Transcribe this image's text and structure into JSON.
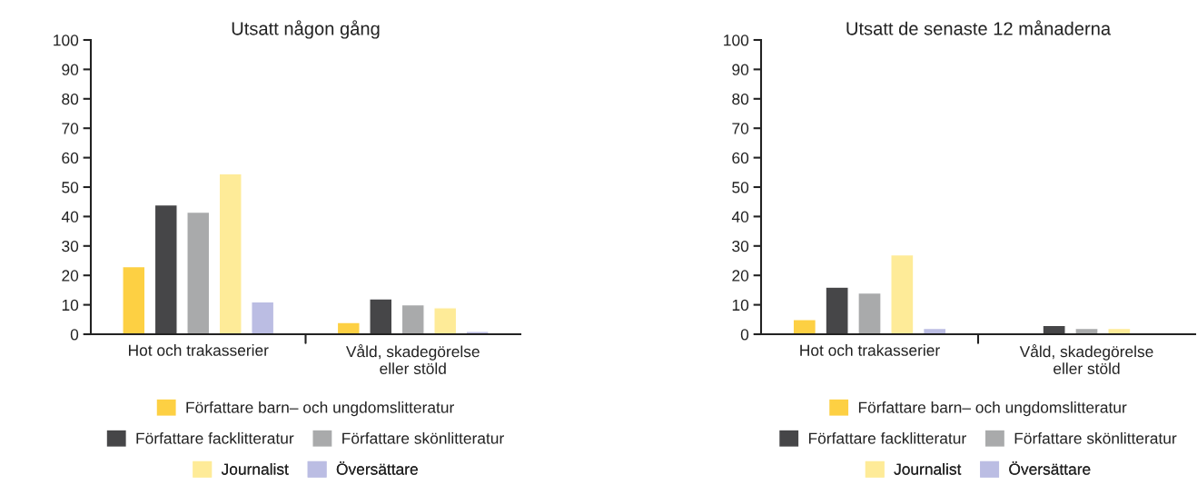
{
  "chart_data": [
    {
      "type": "bar",
      "title": "Utsatt någon gång",
      "categories": [
        "Hot och trakasserier",
        "Våld, skadegörelse\neller stöld"
      ],
      "series": [
        {
          "name": "Författare barn– och ungdomslitteratur",
          "color": "#fdd043",
          "values": [
            23,
            4
          ]
        },
        {
          "name": "Författare facklitteratur",
          "color": "#464648",
          "values": [
            44,
            12
          ]
        },
        {
          "name": "Författare skönlitteratur",
          "color": "#a9aaab",
          "values": [
            41.5,
            10
          ]
        },
        {
          "name": "Journalist",
          "color": "#feeb98",
          "values": [
            54.5,
            9
          ]
        },
        {
          "name": "Översättare",
          "color": "#bbbde3",
          "values": [
            11,
            1
          ]
        }
      ],
      "ylim": [
        0,
        100
      ],
      "yticks": [
        0,
        10,
        20,
        30,
        40,
        50,
        60,
        70,
        80,
        90,
        100
      ],
      "grid": false,
      "legend": "bottom"
    },
    {
      "type": "bar",
      "title": "Utsatt de senaste 12 månaderna",
      "categories": [
        "Hot och trakasserier",
        "Våld, skadegörelse\neller stöld"
      ],
      "series": [
        {
          "name": "Författare barn– och ungdomslitteratur",
          "color": "#fdd043",
          "values": [
            5,
            null
          ]
        },
        {
          "name": "Författare facklitteratur",
          "color": "#464648",
          "values": [
            16,
            3
          ]
        },
        {
          "name": "Författare skönlitteratur",
          "color": "#a9aaab",
          "values": [
            14,
            2
          ]
        },
        {
          "name": "Journalist",
          "color": "#feeb98",
          "values": [
            27,
            2
          ]
        },
        {
          "name": "Översättare",
          "color": "#bbbde3",
          "values": [
            2,
            null
          ]
        }
      ],
      "ylim": [
        0,
        100
      ],
      "yticks": [
        0,
        10,
        20,
        30,
        40,
        50,
        60,
        70,
        80,
        90,
        100
      ],
      "grid": false,
      "legend": "bottom"
    }
  ]
}
